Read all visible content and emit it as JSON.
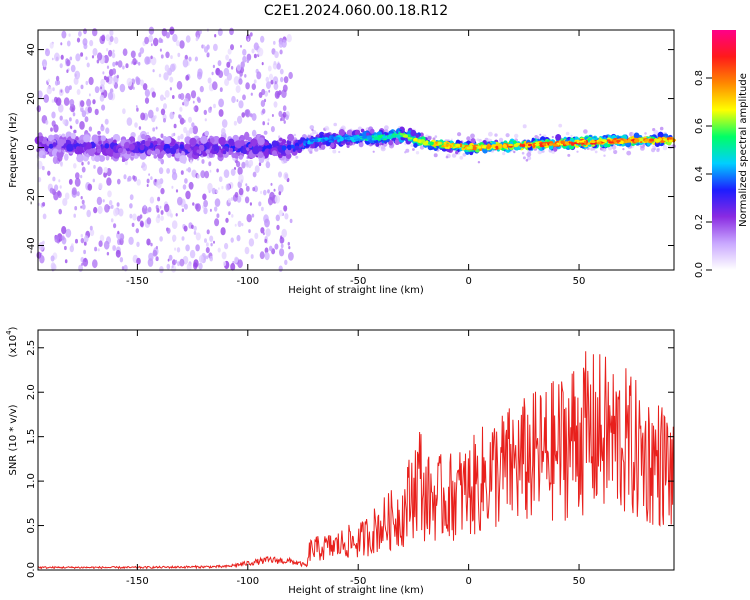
{
  "title": "C2E1.2024.060.00.18.R12",
  "chart_data": [
    {
      "type": "heatmap",
      "xlabel": "Height of straight line (km)",
      "ylabel": "Frequency (Hz)",
      "xlim": [
        -195,
        93
      ],
      "ylim": [
        -50,
        48
      ],
      "x_ticks": [
        -150,
        -100,
        -50,
        0,
        50
      ],
      "y_ticks": [
        -40,
        -20,
        0,
        20,
        40
      ],
      "colorbar": {
        "label": "Normalized spectral amplitude",
        "range": [
          0,
          1
        ],
        "ticks": [
          "0.0",
          "0.2",
          "0.4",
          "0.6",
          "0.8"
        ],
        "colors": [
          "#ffffff",
          "#c9a8ff",
          "#8a2be2",
          "#1d1dff",
          "#00cfff",
          "#00ff66",
          "#ffff00",
          "#ff8800",
          "#ff1a1a",
          "#ff0088"
        ]
      },
      "band": {
        "x": [
          -195,
          -150,
          -100,
          -80,
          -70,
          -50,
          -40,
          -30,
          -20,
          -10,
          0,
          25,
          50,
          75,
          93
        ],
        "center_hz": [
          1,
          0,
          0,
          0,
          3,
          4,
          4,
          5,
          2,
          1,
          0,
          1,
          2,
          3,
          3
        ],
        "peak_amplitude": [
          0.3,
          0.32,
          0.35,
          0.38,
          0.45,
          0.5,
          0.55,
          0.6,
          0.7,
          0.75,
          0.8,
          0.85,
          0.88,
          0.85,
          0.85
        ]
      }
    },
    {
      "type": "line",
      "xlabel": "Height of straight line (km)",
      "ylabel": "SNR (10 * v/v)",
      "y_exponent_label": "(x10",
      "y_exponent_power": "4",
      "xlim": [
        -195,
        93
      ],
      "ylim": [
        0,
        27000
      ],
      "x_ticks": [
        -150,
        -100,
        -50,
        0,
        50
      ],
      "y_ticks": [
        0,
        5000,
        10000,
        15000,
        20000,
        25000
      ],
      "y_tick_labels": [
        "0.0",
        "0.5",
        "1.0",
        "1.5",
        "2.0",
        "2.5"
      ],
      "color": "#e8201c",
      "series": [
        {
          "x": [
            -195,
            -150,
            -110,
            -90,
            -80,
            -73,
            -72,
            -60,
            -55,
            -50,
            -40,
            -30,
            -22,
            -20,
            -10,
            0,
            10,
            20,
            30,
            40,
            45,
            50,
            60,
            65,
            70,
            80,
            90,
            93
          ],
          "y": [
            300,
            300,
            400,
            1200,
            1000,
            500,
            2500,
            3000,
            3500,
            3500,
            5500,
            7000,
            12000,
            9000,
            9000,
            10000,
            12000,
            13000,
            14000,
            15000,
            16000,
            17000,
            17000,
            16500,
            16000,
            14000,
            13000,
            11000
          ]
        }
      ]
    }
  ]
}
